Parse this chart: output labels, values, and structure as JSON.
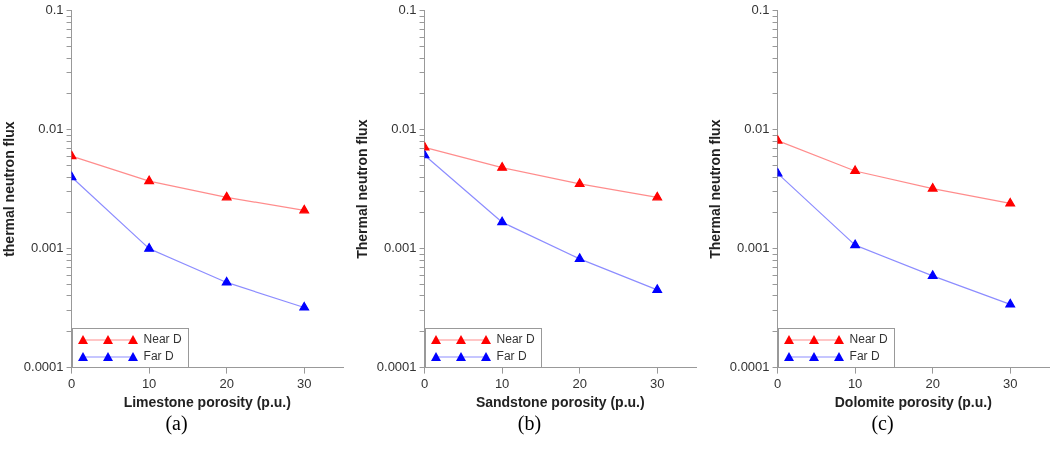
{
  "chart_data": [
    {
      "type": "line",
      "xlabel": "Limestone porosity (p.u.)",
      "ylabel": "thermal neutron flux",
      "annotations": [
        "(a)"
      ],
      "log": "y",
      "grid": false,
      "legend": "bottom left",
      "marker": "triangle",
      "line_style": "solid",
      "x": [
        0,
        10,
        20,
        30
      ],
      "xlim": [
        0,
        35
      ],
      "xticks": [
        0,
        10,
        20,
        30
      ],
      "ylim": [
        0.0001,
        0.1
      ],
      "yticks": [
        0.0001,
        {
          "value": 0.0002,
          "label": null
        },
        {
          "value": 0.0003,
          "label": null
        },
        {
          "value": 0.0004,
          "label": null
        },
        {
          "value": 0.0005,
          "label": null
        },
        {
          "value": 0.0006,
          "label": null
        },
        {
          "value": 0.0007,
          "label": null
        },
        {
          "value": 0.0008,
          "label": null
        },
        {
          "value": 0.0009,
          "label": null
        },
        0.001,
        {
          "value": 0.002,
          "label": null
        },
        {
          "value": 0.003,
          "label": null
        },
        {
          "value": 0.004,
          "label": null
        },
        {
          "value": 0.005,
          "label": null
        },
        {
          "value": 0.006,
          "label": null
        },
        {
          "value": 0.007,
          "label": null
        },
        {
          "value": 0.008,
          "label": null
        },
        {
          "value": 0.009,
          "label": null
        },
        0.01,
        {
          "value": 0.02,
          "label": null
        },
        {
          "value": 0.03,
          "label": null
        },
        {
          "value": 0.04,
          "label": null
        },
        {
          "value": 0.05,
          "label": null
        },
        {
          "value": 0.06,
          "label": null
        },
        {
          "value": 0.07,
          "label": null
        },
        {
          "value": 0.08,
          "label": null
        },
        {
          "value": 0.09,
          "label": null
        },
        0.1
      ],
      "series": [
        {
          "name": "Near D",
          "color": "#ff0000",
          "values": [
            0.006,
            0.0037,
            0.0027,
            0.0021
          ]
        },
        {
          "name": "Far D",
          "color": "#0000ff",
          "values": [
            0.004,
            0.001,
            0.00052,
            0.00032
          ]
        }
      ]
    },
    {
      "type": "line",
      "xlabel": "Sandstone porosity (p.u.)",
      "ylabel": "Thermal neutron flux",
      "annotations": [
        "(b)"
      ],
      "log": "y",
      "grid": false,
      "legend": "bottom left",
      "marker": "triangle",
      "line_style": "solid",
      "x": [
        0,
        10,
        20,
        30
      ],
      "xlim": [
        0,
        35
      ],
      "xticks": [
        0,
        10,
        20,
        30
      ],
      "ylim": [
        0.0001,
        0.1
      ],
      "yticks": [
        0.0001,
        {
          "value": 0.0002,
          "label": null
        },
        {
          "value": 0.0003,
          "label": null
        },
        {
          "value": 0.0004,
          "label": null
        },
        {
          "value": 0.0005,
          "label": null
        },
        {
          "value": 0.0006,
          "label": null
        },
        {
          "value": 0.0007,
          "label": null
        },
        {
          "value": 0.0008,
          "label": null
        },
        {
          "value": 0.0009,
          "label": null
        },
        0.001,
        {
          "value": 0.002,
          "label": null
        },
        {
          "value": 0.003,
          "label": null
        },
        {
          "value": 0.004,
          "label": null
        },
        {
          "value": 0.005,
          "label": null
        },
        {
          "value": 0.006,
          "label": null
        },
        {
          "value": 0.007,
          "label": null
        },
        {
          "value": 0.008,
          "label": null
        },
        {
          "value": 0.009,
          "label": null
        },
        0.01,
        {
          "value": 0.02,
          "label": null
        },
        {
          "value": 0.03,
          "label": null
        },
        {
          "value": 0.04,
          "label": null
        },
        {
          "value": 0.05,
          "label": null
        },
        {
          "value": 0.06,
          "label": null
        },
        {
          "value": 0.07,
          "label": null
        },
        {
          "value": 0.08,
          "label": null
        },
        {
          "value": 0.09,
          "label": null
        },
        0.1
      ],
      "series": [
        {
          "name": "Near D",
          "color": "#ff0000",
          "values": [
            0.0071,
            0.0048,
            0.0035,
            0.0027
          ]
        },
        {
          "name": "Far D",
          "color": "#0000ff",
          "values": [
            0.0061,
            0.00167,
            0.00082,
            0.00045
          ]
        }
      ]
    },
    {
      "type": "line",
      "xlabel": "Dolomite porosity (p.u.)",
      "ylabel": "Thermal neutron flux",
      "annotations": [
        "(c)"
      ],
      "log": "y",
      "grid": false,
      "legend": "bottom left",
      "marker": "triangle",
      "line_style": "solid",
      "x": [
        0,
        10,
        20,
        30
      ],
      "xlim": [
        0,
        35
      ],
      "xticks": [
        0,
        10,
        20,
        30
      ],
      "ylim": [
        0.0001,
        0.1
      ],
      "yticks": [
        0.0001,
        {
          "value": 0.0002,
          "label": null
        },
        {
          "value": 0.0003,
          "label": null
        },
        {
          "value": 0.0004,
          "label": null
        },
        {
          "value": 0.0005,
          "label": null
        },
        {
          "value": 0.0006,
          "label": null
        },
        {
          "value": 0.0007,
          "label": null
        },
        {
          "value": 0.0008,
          "label": null
        },
        {
          "value": 0.0009,
          "label": null
        },
        0.001,
        {
          "value": 0.002,
          "label": null
        },
        {
          "value": 0.003,
          "label": null
        },
        {
          "value": 0.004,
          "label": null
        },
        {
          "value": 0.005,
          "label": null
        },
        {
          "value": 0.006,
          "label": null
        },
        {
          "value": 0.007,
          "label": null
        },
        {
          "value": 0.008,
          "label": null
        },
        {
          "value": 0.009,
          "label": null
        },
        0.01,
        {
          "value": 0.02,
          "label": null
        },
        {
          "value": 0.03,
          "label": null
        },
        {
          "value": 0.04,
          "label": null
        },
        {
          "value": 0.05,
          "label": null
        },
        {
          "value": 0.06,
          "label": null
        },
        {
          "value": 0.07,
          "label": null
        },
        {
          "value": 0.08,
          "label": null
        },
        {
          "value": 0.09,
          "label": null
        },
        0.1
      ],
      "series": [
        {
          "name": "Near D",
          "color": "#ff0000",
          "values": [
            0.0081,
            0.0045,
            0.0032,
            0.0024
          ]
        },
        {
          "name": "Far D",
          "color": "#0000ff",
          "values": [
            0.0043,
            0.00107,
            0.00059,
            0.00034
          ]
        }
      ]
    }
  ]
}
